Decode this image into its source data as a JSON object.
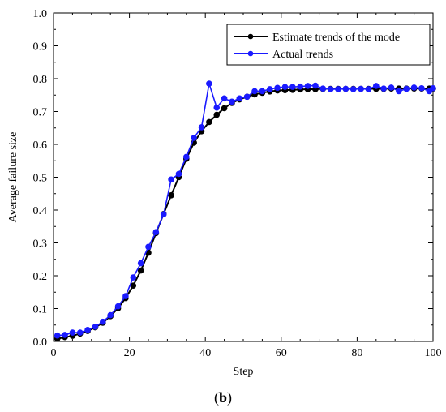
{
  "chart_data": {
    "type": "line",
    "xlabel": "Step",
    "ylabel": "Average failure size",
    "xlim": [
      0,
      100
    ],
    "ylim": [
      0,
      1.0
    ],
    "xticks": [
      "0",
      "20",
      "40",
      "60",
      "80",
      "100"
    ],
    "yticks": [
      "0.0",
      "0.1",
      "0.2",
      "0.3",
      "0.4",
      "0.5",
      "0.6",
      "0.7",
      "0.8",
      "0.9",
      "1.0"
    ],
    "grid": false,
    "legend_position": "top-right",
    "caption": "(b)",
    "caption_bold_part": "b",
    "series": [
      {
        "name": "Estimate trends of the mode",
        "color": "#000000",
        "marker": "circle",
        "x": [
          1,
          3,
          5,
          7,
          9,
          11,
          13,
          15,
          17,
          19,
          21,
          23,
          25,
          27,
          29,
          31,
          33,
          35,
          37,
          39,
          41,
          43,
          45,
          47,
          49,
          51,
          53,
          55,
          57,
          59,
          61,
          63,
          65,
          67,
          69,
          71,
          73,
          75,
          77,
          79,
          81,
          83,
          85,
          87,
          89,
          91,
          93,
          95,
          97,
          99,
          100
        ],
        "y": [
          0.008,
          0.013,
          0.017,
          0.024,
          0.032,
          0.043,
          0.057,
          0.077,
          0.101,
          0.132,
          0.17,
          0.216,
          0.27,
          0.33,
          0.388,
          0.445,
          0.5,
          0.556,
          0.605,
          0.64,
          0.668,
          0.69,
          0.71,
          0.726,
          0.737,
          0.745,
          0.752,
          0.757,
          0.761,
          0.764,
          0.765,
          0.766,
          0.767,
          0.768,
          0.768,
          0.769,
          0.769,
          0.769,
          0.769,
          0.769,
          0.769,
          0.769,
          0.769,
          0.769,
          0.77,
          0.77,
          0.77,
          0.77,
          0.77,
          0.77,
          0.77
        ]
      },
      {
        "name": "Actual trends",
        "color": "#1a1aff",
        "marker": "circle",
        "x": [
          1,
          3,
          5,
          7,
          9,
          11,
          13,
          15,
          17,
          19,
          21,
          23,
          25,
          27,
          29,
          31,
          33,
          35,
          37,
          39,
          41,
          43,
          45,
          47,
          49,
          51,
          53,
          55,
          57,
          59,
          61,
          63,
          65,
          67,
          69,
          71,
          73,
          75,
          77,
          79,
          81,
          83,
          85,
          87,
          89,
          91,
          93,
          95,
          97,
          99,
          100
        ],
        "y": [
          0.018,
          0.02,
          0.027,
          0.027,
          0.035,
          0.045,
          0.06,
          0.08,
          0.107,
          0.138,
          0.195,
          0.238,
          0.288,
          0.333,
          0.387,
          0.493,
          0.51,
          0.562,
          0.62,
          0.652,
          0.785,
          0.712,
          0.74,
          0.73,
          0.74,
          0.745,
          0.762,
          0.762,
          0.768,
          0.772,
          0.775,
          0.775,
          0.776,
          0.778,
          0.779,
          0.77,
          0.768,
          0.768,
          0.769,
          0.768,
          0.769,
          0.768,
          0.778,
          0.77,
          0.773,
          0.762,
          0.769,
          0.773,
          0.771,
          0.762,
          0.771
        ]
      }
    ]
  }
}
